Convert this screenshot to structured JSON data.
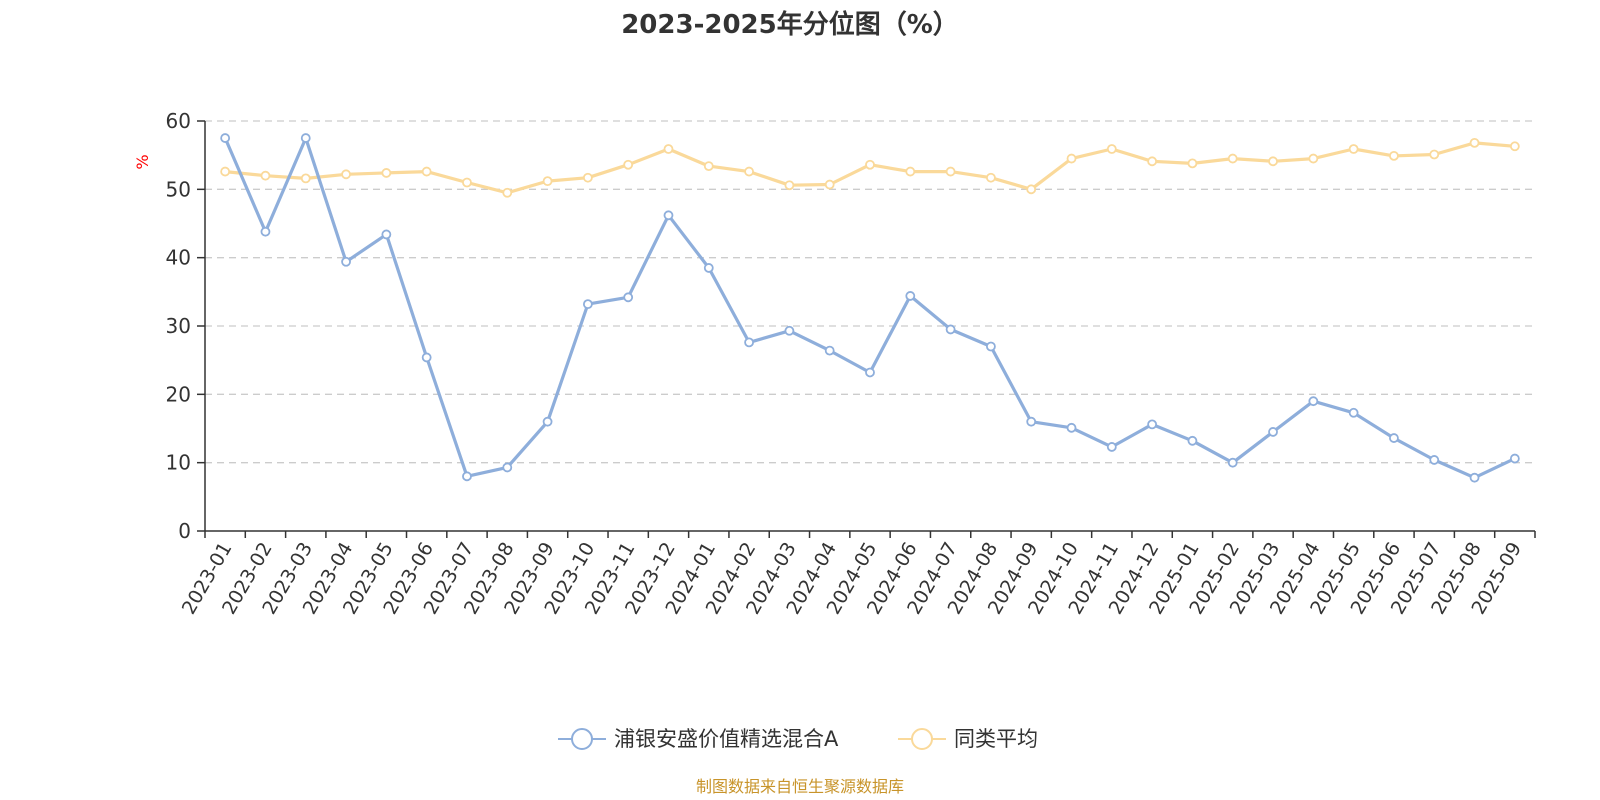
{
  "chart_data": {
    "type": "line",
    "title": "2023-2025年分位图（%）",
    "ylabel": "%",
    "ylim": [
      0,
      60
    ],
    "yticks": [
      0,
      10,
      20,
      30,
      40,
      50,
      60
    ],
    "grid": true,
    "categories": [
      "2023-01",
      "2023-02",
      "2023-03",
      "2023-04",
      "2023-05",
      "2023-06",
      "2023-07",
      "2023-08",
      "2023-09",
      "2023-10",
      "2023-11",
      "2023-12",
      "2024-01",
      "2024-02",
      "2024-03",
      "2024-04",
      "2024-05",
      "2024-06",
      "2024-07",
      "2024-08",
      "2024-09",
      "2024-10",
      "2024-11",
      "2024-12",
      "2025-01",
      "2025-02",
      "2025-03",
      "2025-04",
      "2025-05",
      "2025-06",
      "2025-07",
      "2025-08",
      "2025-09"
    ],
    "series": [
      {
        "name": "浦银安盛价值精选混合A",
        "color": "#8eaedb",
        "values": [
          57.5,
          43.8,
          57.5,
          39.4,
          43.4,
          25.4,
          8.0,
          9.3,
          16.0,
          33.2,
          34.2,
          46.2,
          38.5,
          27.6,
          29.3,
          26.4,
          23.2,
          34.4,
          29.5,
          27.0,
          16.0,
          15.1,
          12.3,
          15.6,
          13.2,
          10.0,
          14.5,
          19.0,
          17.3,
          13.6,
          10.4,
          7.8,
          10.6
        ]
      },
      {
        "name": "同类平均",
        "color": "#fad99a",
        "values": [
          52.6,
          52.0,
          51.6,
          52.2,
          52.4,
          52.6,
          51.0,
          49.5,
          51.2,
          51.7,
          53.6,
          55.9,
          53.4,
          52.6,
          50.6,
          50.7,
          53.6,
          52.6,
          52.6,
          51.7,
          50.0,
          54.5,
          55.9,
          54.1,
          53.8,
          54.5,
          54.1,
          54.5,
          55.9,
          54.9,
          55.1,
          56.8,
          56.3
        ]
      }
    ],
    "legend_position": "bottom-center"
  },
  "source_text": "制图数据来自恒生聚源数据库",
  "colors": {
    "axis": "#333333",
    "grid": "#cccccc",
    "unit_label": "#ff0000",
    "source_text": "#c8942a"
  }
}
